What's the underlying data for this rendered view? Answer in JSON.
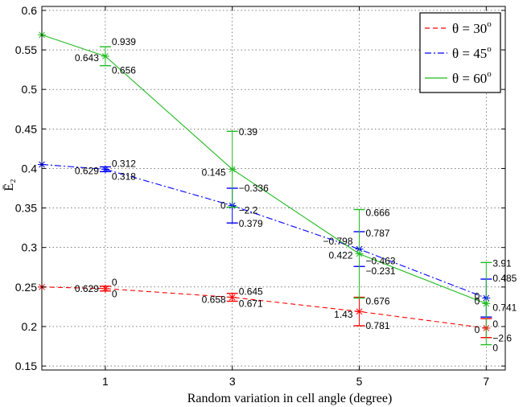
{
  "chart_data": {
    "type": "line",
    "title": "",
    "xlabel": "Random variation in cell angle (degree)",
    "ylabel": "Ē₂",
    "xlim": [
      0,
      7.3
    ],
    "ylim": [
      0.145,
      0.605
    ],
    "xticks": [
      1,
      3,
      5,
      7
    ],
    "yticks": [
      0.15,
      0.2,
      0.25,
      0.3,
      0.35,
      0.4,
      0.45,
      0.5,
      0.55,
      0.6
    ],
    "xtick_labels": [
      "1",
      "3",
      "5",
      "7"
    ],
    "ytick_labels": [
      "0.15",
      "0.2",
      "0.25",
      "0.3",
      "0.35",
      "0.4",
      "0.45",
      "0.5",
      "0.55",
      "0.6"
    ],
    "grid": true,
    "legend_position": "top-right",
    "series": [
      {
        "name": "θ = 30°",
        "legend_label": "θ = 30",
        "legend_sup": "o",
        "color": "#ff0000",
        "dash": "dashed",
        "x": [
          0,
          1,
          3,
          5,
          7
        ],
        "y": [
          0.25,
          0.248,
          0.237,
          0.219,
          0.198
        ],
        "error_bar": [
          null,
          0.003,
          0.005,
          0.018,
          0.012
        ],
        "annotations": [
          {
            "text": "0.629",
            "x": 1,
            "y": 0.248,
            "pos": "left"
          },
          {
            "text": "0",
            "x": 1,
            "y": 0.256,
            "pos": "right"
          },
          {
            "text": "0",
            "x": 1,
            "y": 0.241,
            "pos": "right"
          },
          {
            "text": "0.645",
            "x": 3,
            "y": 0.244,
            "pos": "right"
          },
          {
            "text": "0.658",
            "x": 3,
            "y": 0.234,
            "pos": "left"
          },
          {
            "text": "0.671",
            "x": 3,
            "y": 0.229,
            "pos": "right"
          },
          {
            "text": "0.676",
            "x": 5,
            "y": 0.232,
            "pos": "right"
          },
          {
            "text": "1.43",
            "x": 5,
            "y": 0.215,
            "pos": "left"
          },
          {
            "text": "0.781",
            "x": 5,
            "y": 0.201,
            "pos": "right"
          },
          {
            "text": "0",
            "x": 7,
            "y": 0.196,
            "pos": "left"
          },
          {
            "text": "0",
            "x": 7,
            "y": 0.203,
            "pos": "right"
          }
        ]
      },
      {
        "name": "θ = 45°",
        "legend_label": "θ = 45",
        "legend_sup": "o",
        "color": "#0000ff",
        "dash": "dashdot",
        "x": [
          0,
          1,
          3,
          5,
          7
        ],
        "y": [
          0.405,
          0.399,
          0.353,
          0.298,
          0.236
        ],
        "error_bar": [
          null,
          0.003,
          0.022,
          0.022,
          0.024
        ],
        "annotations": [
          {
            "text": "0.312",
            "x": 1,
            "y": 0.406,
            "pos": "right"
          },
          {
            "text": "0.629",
            "x": 1,
            "y": 0.397,
            "pos": "left"
          },
          {
            "text": "0.318",
            "x": 1,
            "y": 0.39,
            "pos": "right"
          },
          {
            "text": "−0.336",
            "x": 3,
            "y": 0.375,
            "pos": "right"
          },
          {
            "text": "0",
            "x": 3,
            "y": 0.353,
            "pos": "left"
          },
          {
            "text": "−2.2",
            "x": 3,
            "y": 0.347,
            "pos": "right"
          },
          {
            "text": "0.379",
            "x": 3,
            "y": 0.33,
            "pos": "right"
          },
          {
            "text": "0.787",
            "x": 5,
            "y": 0.318,
            "pos": "right"
          },
          {
            "text": "−0.798",
            "x": 5,
            "y": 0.308,
            "pos": "left"
          },
          {
            "text": "−0.463",
            "x": 5,
            "y": 0.283,
            "pos": "right"
          },
          {
            "text": "−0.231",
            "x": 5,
            "y": 0.27,
            "pos": "right"
          },
          {
            "text": "0.485",
            "x": 7,
            "y": 0.261,
            "pos": "right"
          },
          {
            "text": "0",
            "x": 7,
            "y": 0.238,
            "pos": "left"
          },
          {
            "text": "0.741",
            "x": 7,
            "y": 0.224,
            "pos": "right"
          }
        ]
      },
      {
        "name": "θ = 60°",
        "legend_label": "θ = 60",
        "legend_sup": "o",
        "color": "#22bb22",
        "dash": "solid",
        "x": [
          0,
          1,
          3,
          5,
          7
        ],
        "y": [
          0.569,
          0.542,
          0.399,
          0.292,
          0.229
        ],
        "error_bar": [
          null,
          0.012,
          0.048,
          0.056,
          0.052
        ],
        "annotations": [
          {
            "text": "0.939",
            "x": 1,
            "y": 0.56,
            "pos": "right"
          },
          {
            "text": "0.643",
            "x": 1,
            "y": 0.54,
            "pos": "left"
          },
          {
            "text": "0.656",
            "x": 1,
            "y": 0.524,
            "pos": "right"
          },
          {
            "text": "0.39",
            "x": 3,
            "y": 0.446,
            "pos": "right"
          },
          {
            "text": "0.145",
            "x": 3,
            "y": 0.395,
            "pos": "left"
          },
          {
            "text": "0.666",
            "x": 5,
            "y": 0.344,
            "pos": "right"
          },
          {
            "text": "0.422",
            "x": 5,
            "y": 0.29,
            "pos": "left"
          },
          {
            "text": "3.91",
            "x": 7,
            "y": 0.28,
            "pos": "right"
          },
          {
            "text": "0",
            "x": 7,
            "y": 0.232,
            "pos": "left"
          },
          {
            "text": "−2.6",
            "x": 7,
            "y": 0.185,
            "pos": "right"
          },
          {
            "text": "0",
            "x": 7,
            "y": 0.173,
            "pos": "right"
          }
        ]
      }
    ]
  }
}
